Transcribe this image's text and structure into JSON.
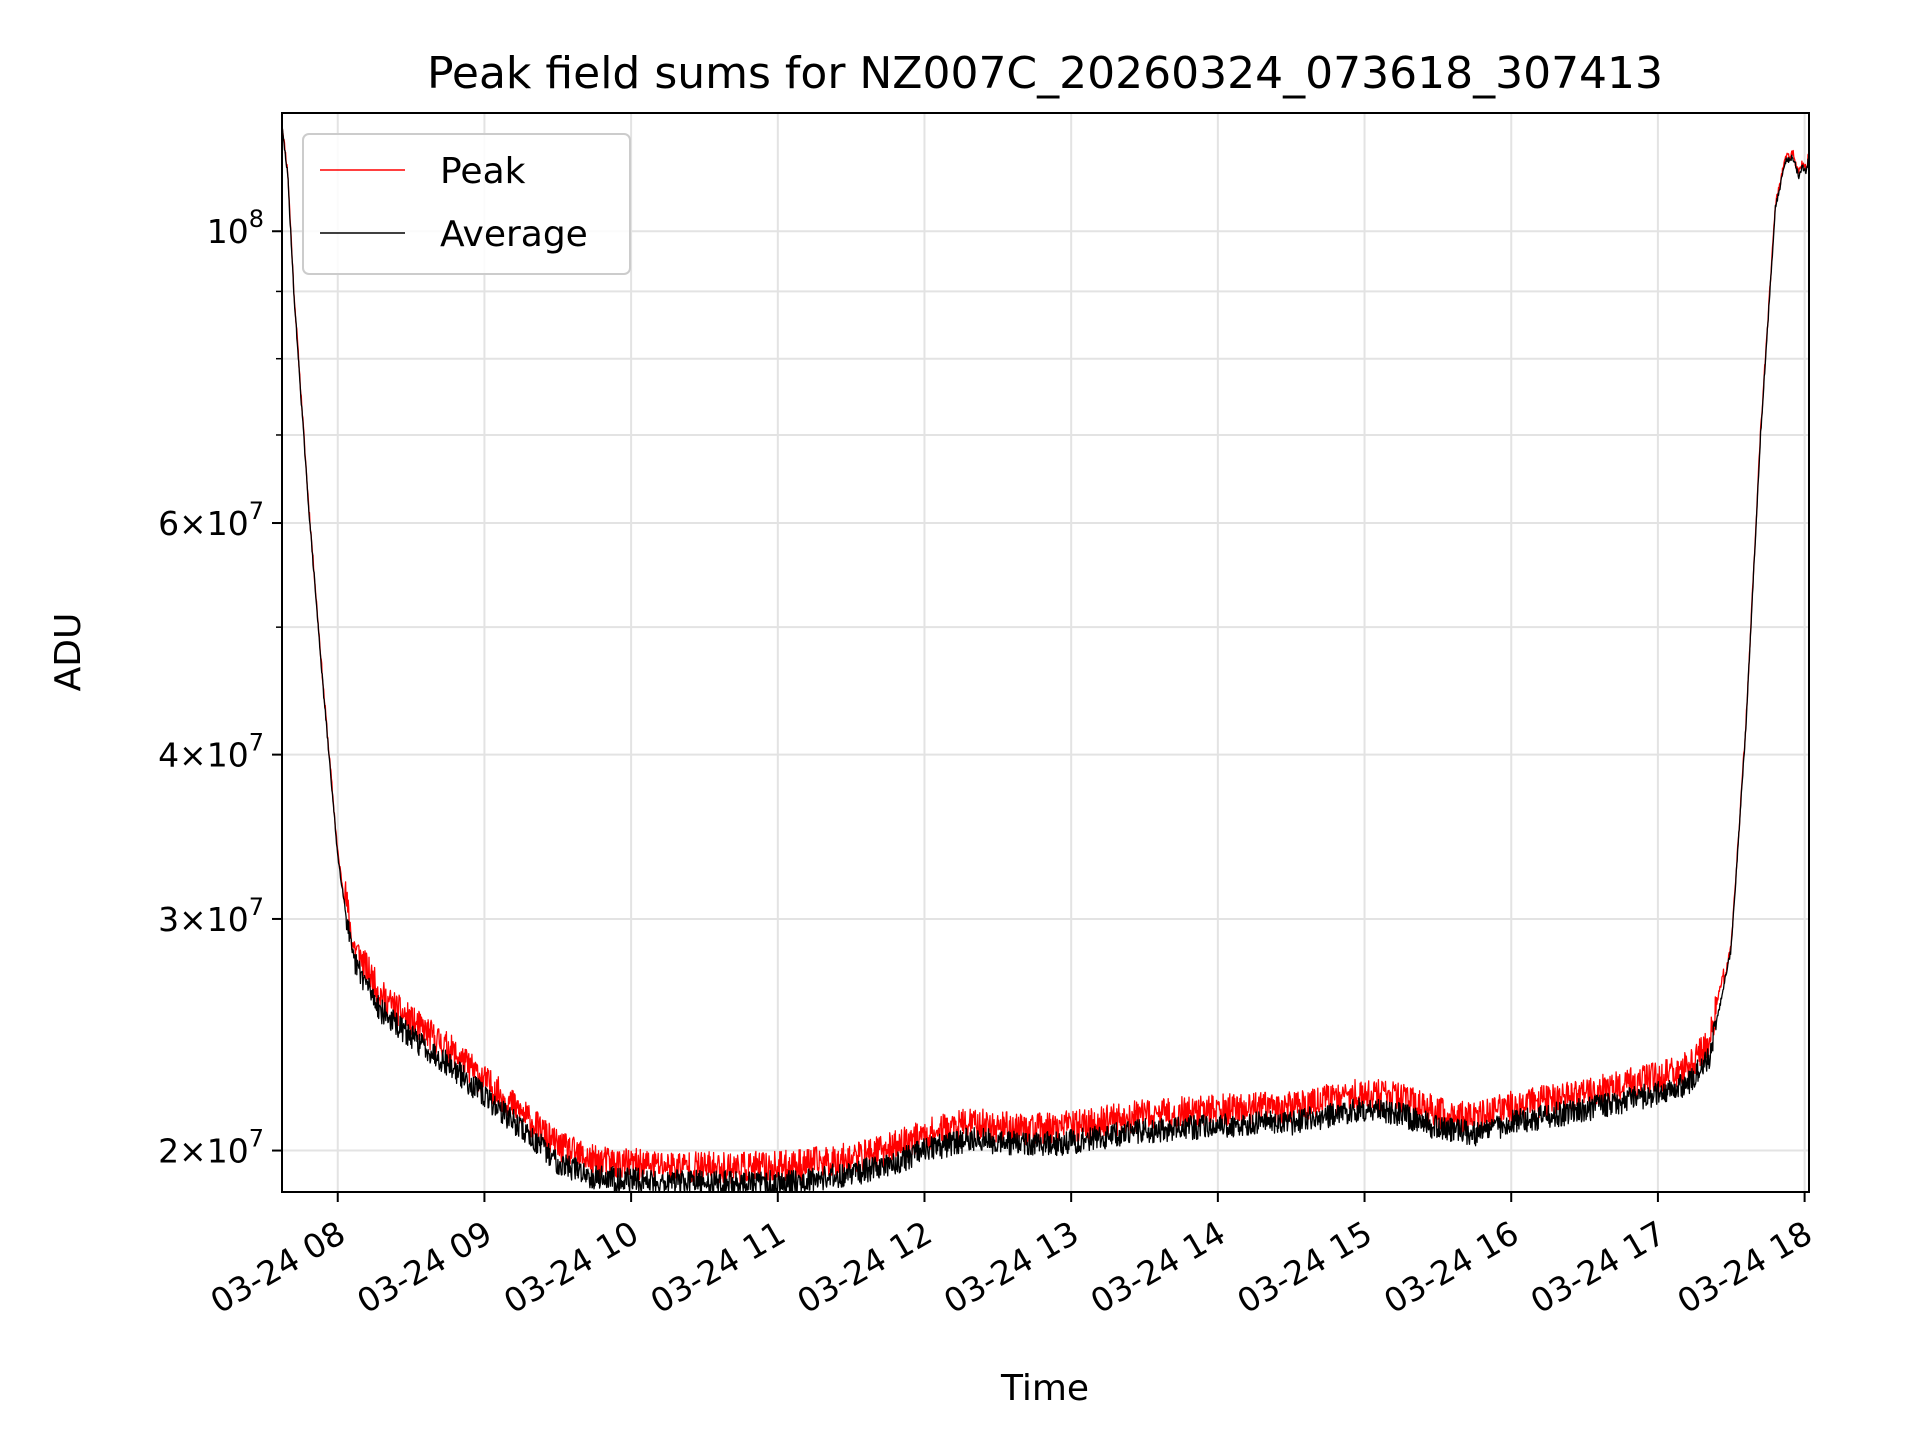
{
  "chart_data": {
    "type": "line",
    "title": "Peak field sums for NZ007C_20260324_073618_307413",
    "xlabel": "Time",
    "ylabel": "ADU",
    "yscale": "log",
    "ylim": [
      18600000,
      123000000
    ],
    "xlim_hours": [
      7.62,
      18.03
    ],
    "x_ticks": [
      {
        "hour": 8,
        "label": "03-24 08"
      },
      {
        "hour": 9,
        "label": "03-24 09"
      },
      {
        "hour": 10,
        "label": "03-24 10"
      },
      {
        "hour": 11,
        "label": "03-24 11"
      },
      {
        "hour": 12,
        "label": "03-24 12"
      },
      {
        "hour": 13,
        "label": "03-24 13"
      },
      {
        "hour": 14,
        "label": "03-24 14"
      },
      {
        "hour": 15,
        "label": "03-24 15"
      },
      {
        "hour": 16,
        "label": "03-24 16"
      },
      {
        "hour": 17,
        "label": "03-24 17"
      },
      {
        "hour": 18,
        "label": "03-24 18"
      }
    ],
    "y_ticks": [
      {
        "value": 20000000,
        "mantissa": "2",
        "exponent": "7"
      },
      {
        "value": 30000000,
        "mantissa": "3",
        "exponent": "7"
      },
      {
        "value": 40000000,
        "mantissa": "4",
        "exponent": "7"
      },
      {
        "value": 60000000,
        "mantissa": "6",
        "exponent": "7"
      },
      {
        "value": 100000000,
        "mantissa": "",
        "exponent": "8"
      }
    ],
    "y_minor_ticks": [
      50000000,
      70000000,
      80000000,
      90000000
    ],
    "grid": true,
    "legend_position": "top-left",
    "series": [
      {
        "name": "Peak",
        "color": "#ff0000",
        "noise": 0.028,
        "offset": 0.028,
        "seed": 11
      },
      {
        "name": "Average",
        "color": "#000000",
        "noise": 0.022,
        "offset": 0.0,
        "seed": 29
      }
    ],
    "trend_hours": [
      7.62,
      7.66,
      7.7,
      7.8,
      7.9,
      8.0,
      8.1,
      8.3,
      8.5,
      8.75,
      9.0,
      9.25,
      9.5,
      9.75,
      10.0,
      10.5,
      11.0,
      11.5,
      11.75,
      12.0,
      12.3,
      12.5,
      12.75,
      13.0,
      13.5,
      14.0,
      14.5,
      15.0,
      15.25,
      15.5,
      15.75,
      16.0,
      16.5,
      17.0,
      17.2,
      17.35,
      17.5,
      17.6,
      17.7,
      17.8,
      17.87,
      17.92,
      17.96,
      17.98,
      18.01,
      18.03
    ],
    "trend_values": [
      120000000,
      110000000,
      90000000,
      62000000,
      45000000,
      33500000,
      28000000,
      25500000,
      24400000,
      23300000,
      22000000,
      20800000,
      19600000,
      19100000,
      19000000,
      18900000,
      18900000,
      19200000,
      19500000,
      20000000,
      20400000,
      20300000,
      20200000,
      20300000,
      20700000,
      20900000,
      21000000,
      21500000,
      21300000,
      20800000,
      20600000,
      21000000,
      21500000,
      22100000,
      22500000,
      23500000,
      28500000,
      42000000,
      70000000,
      104000000,
      113000000,
      114000000,
      110000000,
      112000000,
      111000000,
      114000000
    ]
  }
}
